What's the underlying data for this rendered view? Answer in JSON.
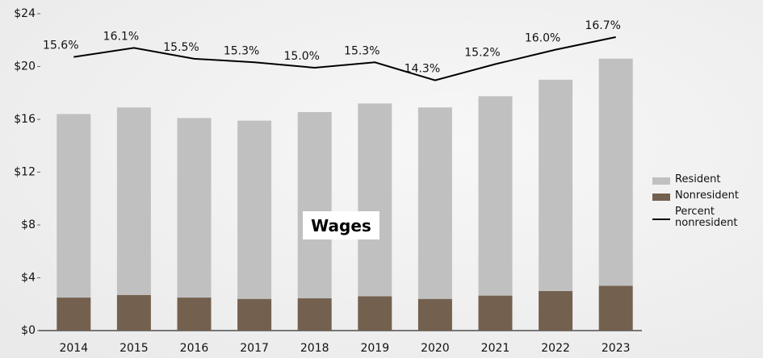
{
  "chart_data": {
    "type": "bar",
    "stacked": true,
    "categories": [
      "2014",
      "2015",
      "2016",
      "2017",
      "2018",
      "2019",
      "2020",
      "2021",
      "2022",
      "2023"
    ],
    "series": [
      {
        "name": "Nonresident",
        "color": "#74604f",
        "values": [
          2.5,
          2.7,
          2.5,
          2.4,
          2.45,
          2.6,
          2.4,
          2.65,
          3.0,
          3.4
        ]
      },
      {
        "name": "Resident",
        "color": "#c0c0c0",
        "values": [
          13.9,
          14.2,
          13.6,
          13.5,
          14.1,
          14.6,
          14.5,
          15.1,
          16.0,
          17.2
        ]
      },
      {
        "name": "Percent nonresident",
        "type": "line",
        "axis": "y2",
        "color": "#000000",
        "values": [
          15.6,
          16.1,
          15.5,
          15.3,
          15.0,
          15.3,
          14.3,
          15.2,
          16.0,
          16.7
        ],
        "value_labels": [
          "15.6%",
          "16.1%",
          "15.5%",
          "15.3%",
          "15.0%",
          "15.3%",
          "14.3%",
          "15.2%",
          "16.0%",
          "16.7%"
        ]
      }
    ],
    "legend_order": [
      1,
      0,
      2
    ],
    "annotation": "Wages",
    "ylim": [
      0,
      24
    ],
    "yticks": [
      {
        "value": 0,
        "label": "$0"
      },
      {
        "value": 4,
        "label": "$4"
      },
      {
        "value": 8,
        "label": "$8"
      },
      {
        "value": 12,
        "label": "$12"
      },
      {
        "value": 16,
        "label": "$16"
      },
      {
        "value": 20,
        "label": "$20"
      },
      {
        "value": 24,
        "label": "$24"
      }
    ],
    "y2lim": [
      0.4,
      18.0
    ],
    "legend": "right"
  }
}
